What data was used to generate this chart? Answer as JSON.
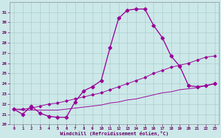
{
  "xlabel": "Windchill (Refroidissement éolien,°C)",
  "bg_color": "#cce8e8",
  "grid_color": "#aacccc",
  "line_color": "#990099",
  "xlim": [
    -0.5,
    23.5
  ],
  "ylim": [
    20,
    32
  ],
  "xticks": [
    0,
    1,
    2,
    3,
    4,
    5,
    6,
    7,
    8,
    9,
    10,
    11,
    12,
    13,
    14,
    15,
    16,
    17,
    18,
    19,
    20,
    21,
    22,
    23
  ],
  "yticks": [
    20,
    21,
    22,
    23,
    24,
    25,
    26,
    27,
    28,
    29,
    30,
    31
  ],
  "line1_x": [
    0,
    1,
    2,
    3,
    4,
    5,
    6,
    7,
    8,
    9,
    10,
    11,
    12,
    13,
    14,
    15,
    16,
    17,
    18,
    19,
    20,
    21,
    22,
    23
  ],
  "line1_y": [
    21.5,
    21.0,
    21.8,
    21.1,
    20.8,
    20.7,
    20.7,
    22.2,
    23.3,
    23.7,
    24.3,
    27.5,
    30.4,
    31.2,
    31.3,
    31.3,
    29.7,
    28.5,
    26.7,
    25.7,
    23.8,
    23.7,
    23.8,
    24.0
  ],
  "line2_x": [
    0,
    1,
    2,
    3,
    4,
    5,
    6,
    7,
    8,
    9,
    10,
    11,
    12,
    13,
    14,
    15,
    16,
    17,
    18,
    19,
    20,
    21,
    22,
    23
  ],
  "line2_y": [
    21.5,
    21.5,
    21.6,
    21.8,
    22.0,
    22.1,
    22.3,
    22.5,
    22.7,
    22.9,
    23.1,
    23.4,
    23.7,
    24.0,
    24.3,
    24.6,
    25.0,
    25.3,
    25.6,
    25.8,
    26.0,
    26.3,
    26.6,
    26.7
  ],
  "line3_x": [
    0,
    1,
    2,
    3,
    4,
    5,
    6,
    7,
    8,
    9,
    10,
    11,
    12,
    13,
    14,
    15,
    16,
    17,
    18,
    19,
    20,
    21,
    22,
    23
  ],
  "line3_y": [
    21.5,
    21.4,
    21.4,
    21.4,
    21.4,
    21.4,
    21.5,
    21.6,
    21.7,
    21.8,
    21.9,
    22.1,
    22.2,
    22.4,
    22.5,
    22.7,
    22.9,
    23.1,
    23.2,
    23.4,
    23.5,
    23.6,
    23.8,
    24.0
  ]
}
